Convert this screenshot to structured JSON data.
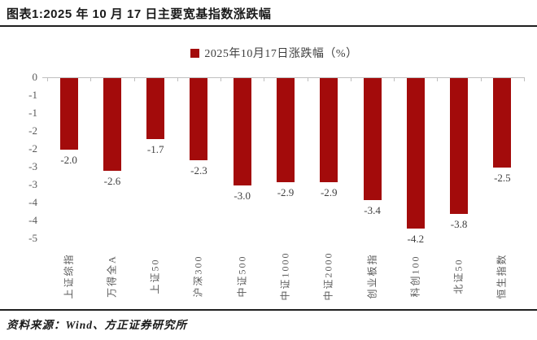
{
  "header": {
    "title": "图表1:2025 年 10 月 17 日主要宽基指数涨跌幅"
  },
  "chart_data": {
    "type": "bar",
    "title": "2025 年 10 月 17 日主要宽基指数涨跌幅",
    "legend": [
      "2025年10月17日涨跌幅（%）"
    ],
    "legend_position": "top-center",
    "categories": [
      "上证综指",
      "万得全A",
      "上证50",
      "沪深300",
      "中证500",
      "中证1000",
      "中证2000",
      "创业板指",
      "科创100",
      "北证50",
      "恒生指数"
    ],
    "values": [
      -2.0,
      -2.6,
      -1.7,
      -2.3,
      -3.0,
      -2.9,
      -2.9,
      -3.4,
      -4.2,
      -3.8,
      -2.5
    ],
    "value_labels": [
      "-2.0",
      "-2.6",
      "-1.7",
      "-2.3",
      "-3.0",
      "-2.9",
      "-2.9",
      "-3.4",
      "-4.2",
      "-3.8",
      "-2.5"
    ],
    "xlabel": "",
    "ylabel": "",
    "y_axis": {
      "tick_labels": [
        "0",
        "-1",
        "-1",
        "-2",
        "-2",
        "-3",
        "-3",
        "-4",
        "-4",
        "-5"
      ],
      "tick_values": [
        0,
        -0.5,
        -1,
        -1.5,
        -2,
        -2.5,
        -3,
        -3.5,
        -4,
        -4.5
      ],
      "range": [
        0,
        -4.5
      ]
    },
    "grid": false,
    "bar_color": "#a30b0b",
    "axis_color": "#bfbfbf",
    "tick_label_color": "#595959",
    "value_label_color": "#3f3f3f"
  },
  "footer": {
    "source": "资料来源：Wind、方正证券研究所"
  }
}
